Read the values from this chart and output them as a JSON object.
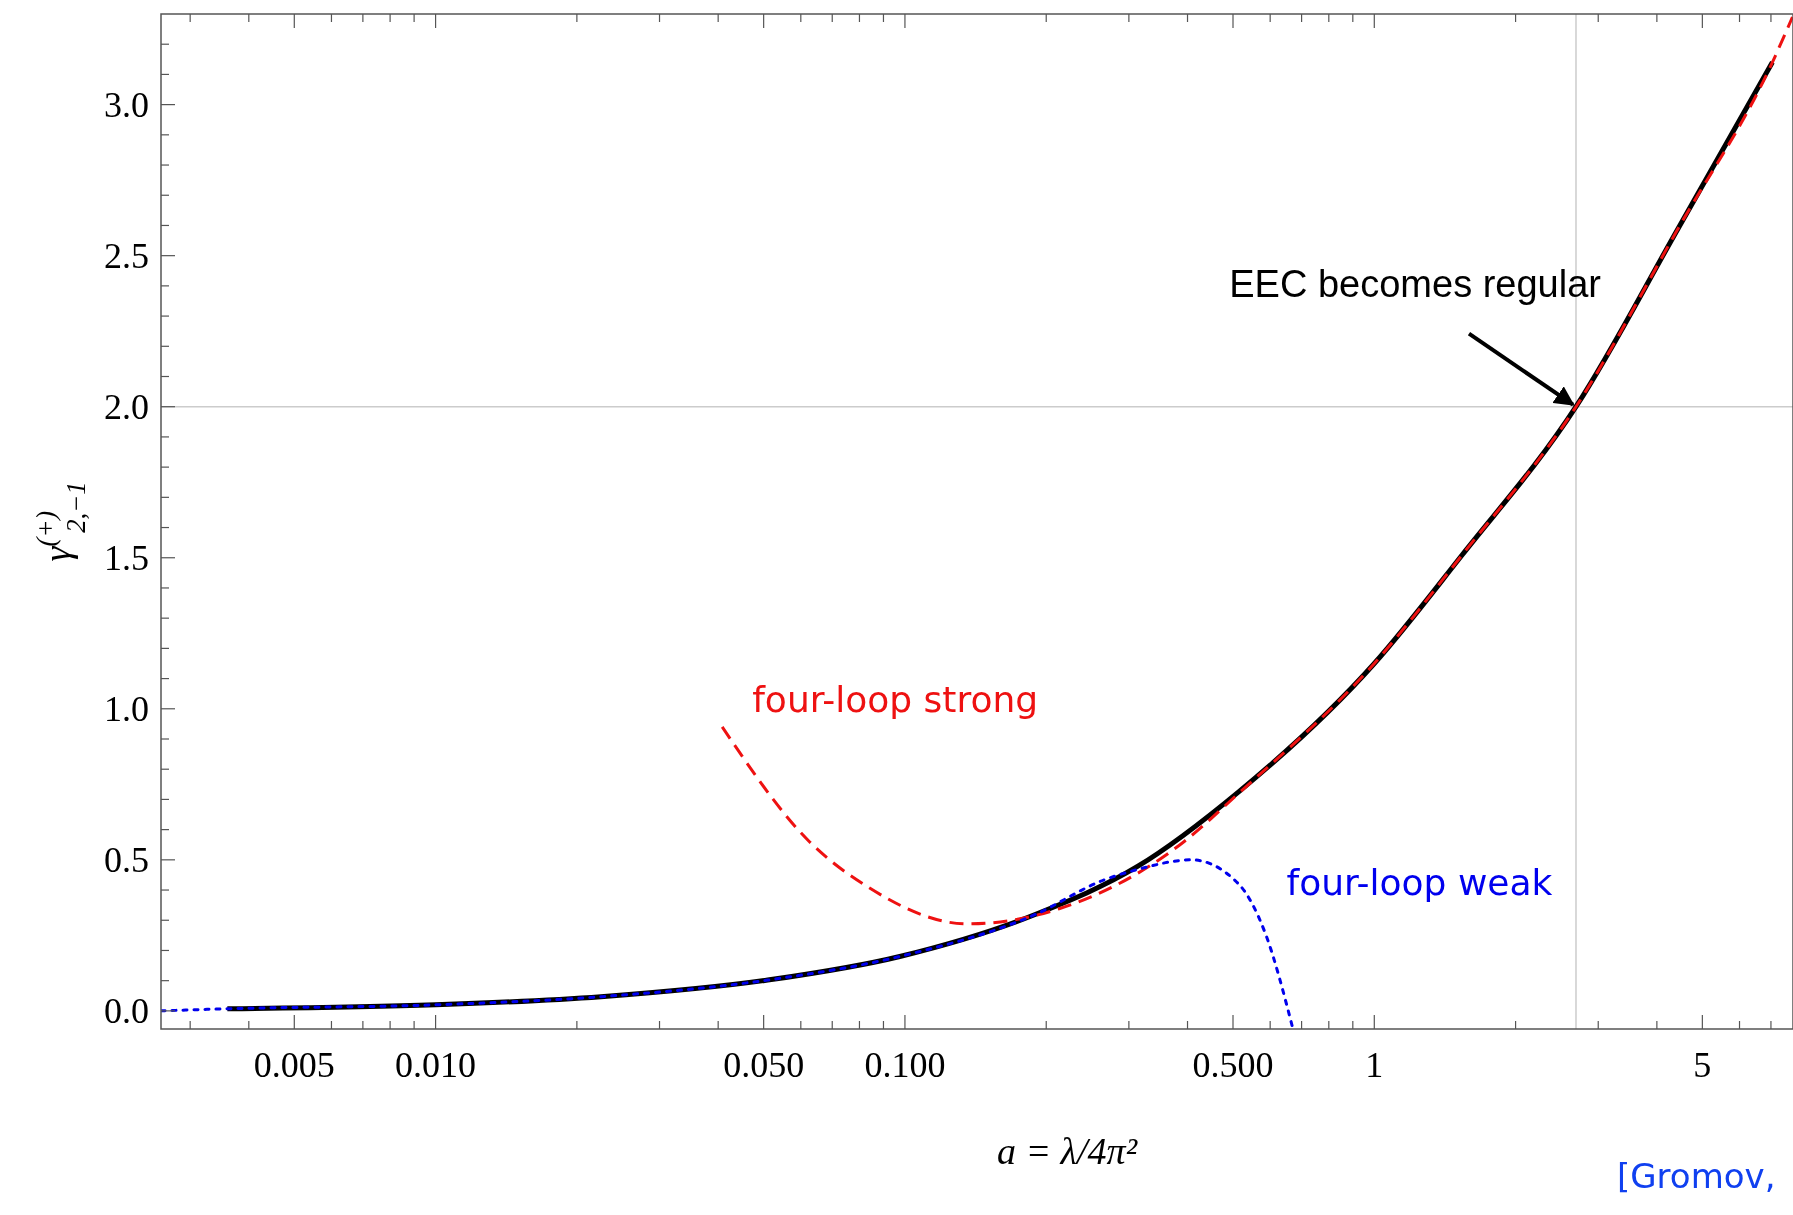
{
  "chart_data": {
    "type": "line",
    "xlabel": "a = λ/4π²",
    "ylabel": "γ$^{(+)}$$_{2,−1}$",
    "log": "x",
    "xlim": [
      0.0026,
      7.8
    ],
    "ylim": [
      -0.06,
      3.3
    ],
    "xticks": [
      {
        "value": 0.003,
        "label": null
      },
      {
        "value": 0.004,
        "label": null
      },
      {
        "value": 0.005,
        "label": "0.005"
      },
      {
        "value": 0.006,
        "label": null
      },
      {
        "value": 0.007,
        "label": null
      },
      {
        "value": 0.008,
        "label": null
      },
      {
        "value": 0.009,
        "label": null
      },
      {
        "value": 0.01,
        "label": "0.010"
      },
      {
        "value": 0.02,
        "label": null
      },
      {
        "value": 0.03,
        "label": null
      },
      {
        "value": 0.04,
        "label": null
      },
      {
        "value": 0.05,
        "label": "0.050"
      },
      {
        "value": 0.06,
        "label": null
      },
      {
        "value": 0.07,
        "label": null
      },
      {
        "value": 0.08,
        "label": null
      },
      {
        "value": 0.09,
        "label": null
      },
      {
        "value": 0.1,
        "label": "0.100"
      },
      {
        "value": 0.2,
        "label": null
      },
      {
        "value": 0.3,
        "label": null
      },
      {
        "value": 0.4,
        "label": null
      },
      {
        "value": 0.5,
        "label": "0.500"
      },
      {
        "value": 0.6,
        "label": null
      },
      {
        "value": 0.7,
        "label": null
      },
      {
        "value": 0.8,
        "label": null
      },
      {
        "value": 0.9,
        "label": null
      },
      1,
      {
        "value": 2,
        "label": null
      },
      {
        "value": 3,
        "label": null
      },
      {
        "value": 4,
        "label": null
      },
      5,
      {
        "value": 6,
        "label": null
      },
      {
        "value": 7,
        "label": null
      }
    ],
    "yticks": [
      {
        "value": 0,
        "label": "0.0"
      },
      {
        "value": 0.1,
        "label": null
      },
      {
        "value": 0.2,
        "label": null
      },
      {
        "value": 0.3,
        "label": null
      },
      {
        "value": 0.4,
        "label": null
      },
      0.5,
      {
        "value": 0.6,
        "label": null
      },
      {
        "value": 0.7,
        "label": null
      },
      {
        "value": 0.8,
        "label": null
      },
      {
        "value": 0.9,
        "label": null
      },
      {
        "value": 1,
        "label": "1.0"
      },
      {
        "value": 1.1,
        "label": null
      },
      {
        "value": 1.2,
        "label": null
      },
      {
        "value": 1.3,
        "label": null
      },
      {
        "value": 1.4,
        "label": null
      },
      1.5,
      {
        "value": 1.6,
        "label": null
      },
      {
        "value": 1.7,
        "label": null
      },
      {
        "value": 1.8,
        "label": null
      },
      {
        "value": 1.9,
        "label": null
      },
      {
        "value": 2,
        "label": "2.0"
      },
      {
        "value": 2.1,
        "label": null
      },
      {
        "value": 2.2,
        "label": null
      },
      {
        "value": 2.3,
        "label": null
      },
      {
        "value": 2.4,
        "label": null
      },
      2.5,
      {
        "value": 2.6,
        "label": null
      },
      {
        "value": 2.7,
        "label": null
      },
      {
        "value": 2.8,
        "label": null
      },
      {
        "value": 2.9,
        "label": null
      },
      {
        "value": 3,
        "label": "3.0"
      },
      {
        "value": 3.1,
        "label": null
      },
      {
        "value": 3.2,
        "label": null
      }
    ],
    "series": [
      {
        "color": "#000000",
        "line_style": "solid",
        "x": [
          0.0036,
          0.01,
          0.0225,
          0.051,
          0.098,
          0.19,
          0.313,
          0.514,
          1.0,
          1.54,
          2.69,
          4.44,
          7.05
        ],
        "values": [
          0.007,
          0.02,
          0.047,
          0.102,
          0.181,
          0.32,
          0.478,
          0.725,
          1.15,
          1.51,
          2.0,
          2.59,
          3.14
        ]
      },
      {
        "name": "four-loop strong",
        "color": "#ee1111",
        "line_style": "dashed",
        "x": [
          0.0408,
          0.0626,
          0.0834,
          0.136,
          0.213,
          0.393,
          0.514,
          1.0,
          1.54,
          2.69,
          4.44,
          7.05,
          7.78
        ],
        "values": [
          0.94,
          0.56,
          0.41,
          0.288,
          0.338,
          0.56,
          0.72,
          1.15,
          1.51,
          2.0,
          2.59,
          3.14,
          3.29
        ]
      },
      {
        "name": "four-loop weak",
        "color": "#0000ee",
        "line_style": "dotted",
        "x": [
          0.0026,
          0.0036,
          0.01,
          0.0225,
          0.051,
          0.098,
          0.19,
          0.265,
          0.313,
          0.408,
          0.514,
          0.587,
          0.671
        ],
        "values": [
          0.0,
          0.007,
          0.02,
          0.047,
          0.102,
          0.181,
          0.32,
          0.433,
          0.468,
          0.5,
          0.42,
          0.253,
          -0.06
        ]
      }
    ],
    "ref_lines": [
      {
        "axis": "x",
        "value": 2.69,
        "color": "#cccccc"
      },
      {
        "axis": "y",
        "value": 2,
        "color": "#cccccc"
      }
    ],
    "annotations": [
      {
        "text": "EEC becomes regular",
        "x": 2.69,
        "y": 2
      },
      "[Gromov,"
    ]
  }
}
